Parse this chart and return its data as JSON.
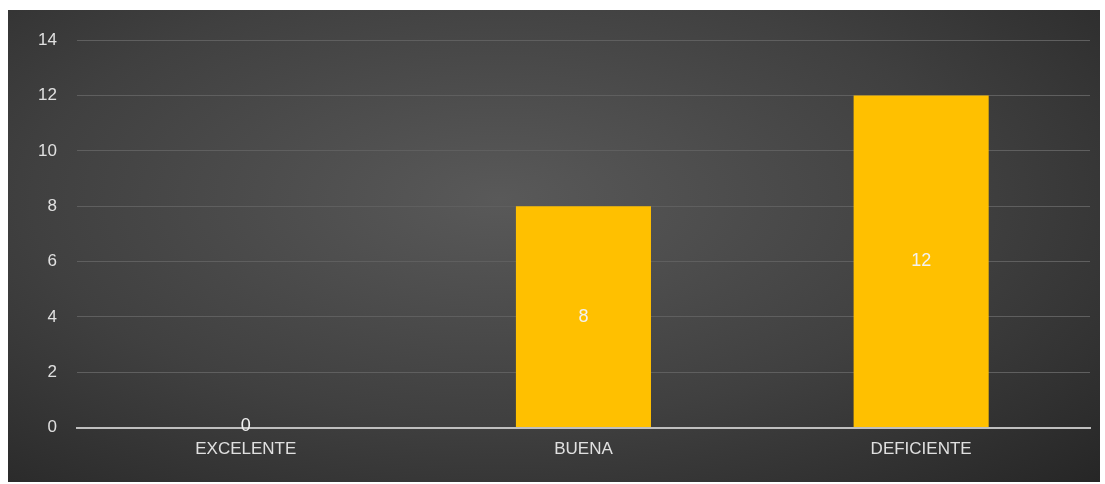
{
  "chart_data": {
    "type": "bar",
    "categories": [
      "EXCELENTE",
      "BUENA",
      "DEFICIENTE"
    ],
    "values": [
      0,
      8,
      12
    ],
    "color": "#ffc000",
    "ylim": [
      0,
      14
    ],
    "yticks": [
      0,
      2,
      4,
      6,
      8,
      10,
      12,
      14
    ],
    "grid": "y",
    "data_labels": true
  }
}
